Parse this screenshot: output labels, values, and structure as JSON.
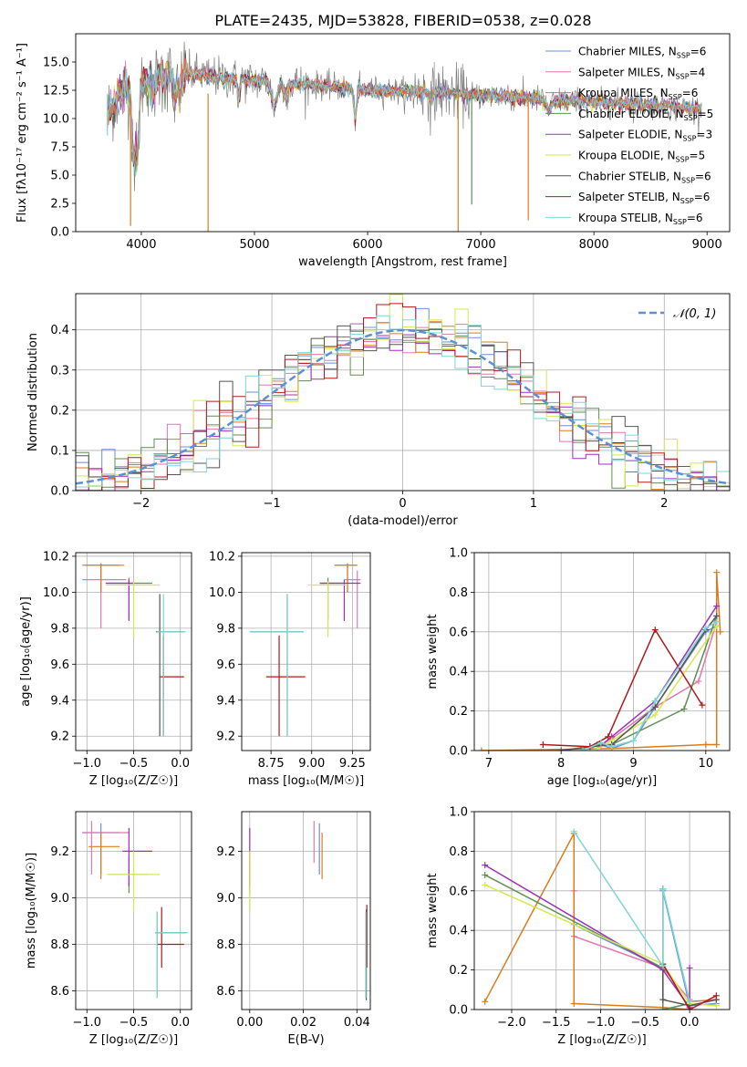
{
  "figure": {
    "title": "PLATE=2435, MJD=53828, FIBERID=0538, z=0.028"
  },
  "legend_models": [
    {
      "label": "Chabrier MILES, N_SSP=6",
      "base": "Chabrier MILES, N",
      "sub": "SSP",
      "tail": "=6",
      "color": "#6a8fd9"
    },
    {
      "label": "Salpeter MILES, N_SSP=4",
      "base": "Salpeter MILES, N",
      "sub": "SSP",
      "tail": "=4",
      "color": "#e377b0"
    },
    {
      "label": "Kroupa MILES, N_SSP=6",
      "base": "Kroupa MILES, N",
      "sub": "SSP",
      "tail": "=6",
      "color": "#d87d1f"
    },
    {
      "label": "Chabrier ELODIE, N_SSP=5",
      "base": "Chabrier ELODIE, N",
      "sub": "SSP",
      "tail": "=5",
      "color": "#5e8f53"
    },
    {
      "label": "Salpeter ELODIE, N_SSP=3",
      "base": "Salpeter ELODIE, N",
      "sub": "SSP",
      "tail": "=3",
      "color": "#9b30b8"
    },
    {
      "label": "Kroupa ELODIE, N_SSP=5",
      "base": "Kroupa ELODIE, N",
      "sub": "SSP",
      "tail": "=5",
      "color": "#d4e84e"
    },
    {
      "label": "Chabrier STELIB, N_SSP=6",
      "base": "Chabrier STELIB, N",
      "sub": "SSP",
      "tail": "=6",
      "color": "#555555"
    },
    {
      "label": "Salpeter STELIB, N_SSP=6",
      "base": "Salpeter STELIB, N",
      "sub": "SSP",
      "tail": "=6",
      "color": "#b2181b"
    },
    {
      "label": "Kroupa STELIB, N_SSP=6",
      "base": "Kroupa STELIB, N",
      "sub": "SSP",
      "tail": "=6",
      "color": "#7fd6d6"
    }
  ],
  "chart_data": [
    {
      "id": "spectrum",
      "type": "line",
      "title": "PLATE=2435, MJD=53828, FIBERID=0538, z=0.028",
      "xlabel": "wavelength [Angstrom, rest frame]",
      "ylabel": "Flux [fλ10⁻¹⁷ erg cm⁻² s⁻¹ A⁻¹]",
      "xlim": [
        3420,
        9200
      ],
      "ylim": [
        0,
        17.5
      ],
      "xticks": [
        4000,
        5000,
        6000,
        7000,
        8000,
        9000
      ],
      "yticks": [
        0.0,
        2.5,
        5.0,
        7.5,
        10.0,
        12.5,
        15.0
      ],
      "grid": false,
      "legend": "top-right",
      "data_color": "#808080",
      "continuum": {
        "x": [
          3700,
          3800,
          3900,
          4000,
          4100,
          4200,
          4300,
          4500,
          4700,
          4900,
          5100,
          5300,
          5500,
          5700,
          5900,
          6100,
          6300,
          6500,
          6700,
          6900,
          7100,
          7300,
          7500,
          7700,
          7900,
          8100,
          8300,
          8500,
          8700,
          8900
        ],
        "y": [
          10.5,
          12.0,
          12.5,
          13.2,
          13.5,
          13.8,
          14.0,
          13.9,
          13.6,
          13.4,
          13.3,
          13.1,
          13.0,
          12.8,
          12.6,
          12.5,
          12.4,
          12.4,
          12.3,
          12.1,
          12.0,
          11.9,
          11.7,
          11.6,
          11.5,
          11.4,
          11.3,
          11.2,
          11.0,
          10.9
        ]
      }
    },
    {
      "id": "residuals",
      "type": "step",
      "xlabel": "(data-model)/error",
      "ylabel": "Normed distribution",
      "xlim": [
        -2.5,
        2.5
      ],
      "ylim": [
        0,
        0.49
      ],
      "xticks": [
        -2,
        -1,
        0,
        1,
        2
      ],
      "yticks": [
        0.0,
        0.1,
        0.2,
        0.3,
        0.4
      ],
      "grid": true,
      "legend": "top-right",
      "reference": {
        "label": "𝒩(0, 1)",
        "color": "#5b8fd6",
        "style": "dashed"
      }
    },
    {
      "id": "age_vs_Z",
      "type": "errorbar",
      "xlabel": "Z [log₁₀(Z/Z☉)]",
      "ylabel": "age  [log₁₀(age/yr)]",
      "xlim": [
        -1.12,
        0.12
      ],
      "ylim": [
        9.12,
        10.22
      ],
      "xticks": [
        -1.0,
        -0.5,
        0.0
      ],
      "yticks": [
        9.2,
        9.4,
        9.6,
        9.8,
        10.0,
        10.2
      ],
      "grid": true,
      "points": [
        {
          "model": 0,
          "x": -0.85,
          "xlo": -1.05,
          "xhi": -0.65,
          "y": 10.15,
          "ylo": 10.0,
          "yhi": 10.16
        },
        {
          "model": 1,
          "x": -0.85,
          "xlo": -1.05,
          "xhi": -0.58,
          "y": 10.07,
          "ylo": 9.8,
          "yhi": 10.12
        },
        {
          "model": 2,
          "x": -0.85,
          "xlo": -1.02,
          "xhi": -0.6,
          "y": 10.15,
          "ylo": 10.0,
          "yhi": 10.16
        },
        {
          "model": 3,
          "x": -0.55,
          "xlo": -0.78,
          "xhi": -0.3,
          "y": 10.05,
          "ylo": 9.85,
          "yhi": 10.08
        },
        {
          "model": 4,
          "x": -0.55,
          "xlo": -0.8,
          "xhi": -0.5,
          "y": 10.05,
          "ylo": 9.84,
          "yhi": 10.07
        },
        {
          "model": 5,
          "x": -0.5,
          "xlo": -0.8,
          "xhi": -0.22,
          "y": 10.04,
          "ylo": 9.75,
          "yhi": 10.06
        },
        {
          "model": 6,
          "x": -0.22,
          "xlo": -0.26,
          "xhi": 0.04,
          "y": 9.78,
          "ylo": 9.2,
          "yhi": 9.99
        },
        {
          "model": 7,
          "x": -0.18,
          "xlo": -0.22,
          "xhi": 0.04,
          "y": 9.53,
          "ylo": 9.2,
          "yhi": 9.76
        },
        {
          "model": 8,
          "x": -0.18,
          "xlo": -0.25,
          "xhi": 0.06,
          "y": 9.78,
          "ylo": 9.2,
          "yhi": 9.99
        }
      ]
    },
    {
      "id": "age_vs_mass",
      "type": "errorbar",
      "xlabel": "mass [log₁₀(M/M☉)]",
      "ylabel": "",
      "xlim": [
        8.57,
        9.36
      ],
      "ylim": [
        9.12,
        10.22
      ],
      "xticks": [
        8.75,
        9.0,
        9.25
      ],
      "yticks": [
        9.2,
        9.4,
        9.6,
        9.8,
        10.0,
        10.2
      ],
      "grid": true,
      "points": [
        {
          "model": 0,
          "x": 9.22,
          "xlo": 9.14,
          "xhi": 9.28,
          "y": 10.15,
          "ylo": 10.0,
          "yhi": 10.16
        },
        {
          "model": 1,
          "x": 9.28,
          "xlo": 9.2,
          "xhi": 9.3,
          "y": 10.07,
          "ylo": 9.8,
          "yhi": 10.12
        },
        {
          "model": 2,
          "x": 9.22,
          "xlo": 9.14,
          "xhi": 9.28,
          "y": 10.15,
          "ylo": 10.0,
          "yhi": 10.16
        },
        {
          "model": 3,
          "x": 9.1,
          "xlo": 9.05,
          "xhi": 9.2,
          "y": 10.05,
          "ylo": 9.85,
          "yhi": 10.08
        },
        {
          "model": 4,
          "x": 9.2,
          "xlo": 9.05,
          "xhi": 9.3,
          "y": 10.05,
          "ylo": 9.84,
          "yhi": 10.07
        },
        {
          "model": 5,
          "x": 9.1,
          "xlo": 8.98,
          "xhi": 9.22,
          "y": 10.04,
          "ylo": 9.75,
          "yhi": 10.06
        },
        {
          "model": 6,
          "x": 8.85,
          "xlo": 8.62,
          "xhi": 8.95,
          "y": 9.78,
          "ylo": 9.2,
          "yhi": 9.99
        },
        {
          "model": 7,
          "x": 8.8,
          "xlo": 8.72,
          "xhi": 8.96,
          "y": 9.53,
          "ylo": 9.2,
          "yhi": 9.76
        },
        {
          "model": 8,
          "x": 8.85,
          "xlo": 8.62,
          "xhi": 8.95,
          "y": 9.78,
          "ylo": 9.2,
          "yhi": 9.99
        }
      ]
    },
    {
      "id": "weight_vs_age",
      "type": "line",
      "xlabel": "age  [log₁₀(age/yr)]",
      "ylabel": "mass weight",
      "xlim": [
        6.8,
        10.33
      ],
      "ylim": [
        0,
        1.0
      ],
      "xticks": [
        7,
        8,
        9,
        10
      ],
      "yticks": [
        0.0,
        0.2,
        0.4,
        0.6,
        0.8,
        1.0
      ],
      "grid": true,
      "series": [
        {
          "model": 0,
          "x": [
            8.3,
            8.55,
            8.7,
            9.0,
            9.3,
            10.0,
            10.15
          ],
          "y": [
            0.0,
            0.03,
            0.01,
            0.05,
            0.22,
            0.6,
            0.63
          ]
        },
        {
          "model": 1,
          "x": [
            8.5,
            8.7,
            9.3,
            9.9,
            10.15
          ],
          "y": [
            0.02,
            0.06,
            0.22,
            0.35,
            0.65
          ]
        },
        {
          "model": 2,
          "x": [
            6.9,
            8.7,
            10.0,
            10.15,
            10.15,
            10.2
          ],
          "y": [
            0.0,
            0.01,
            0.03,
            0.03,
            0.9,
            0.6
          ]
        },
        {
          "model": 3,
          "x": [
            8.5,
            8.7,
            9.7,
            10.15
          ],
          "y": [
            0.03,
            0.03,
            0.21,
            0.68
          ]
        },
        {
          "model": 4,
          "x": [
            8.5,
            8.7,
            9.3,
            10.15
          ],
          "y": [
            0.01,
            0.07,
            0.25,
            0.73
          ]
        },
        {
          "model": 5,
          "x": [
            8.5,
            8.7,
            9.3,
            10.15
          ],
          "y": [
            0.01,
            0.05,
            0.18,
            0.63
          ]
        },
        {
          "model": 6,
          "x": [
            8.0,
            8.4,
            8.7,
            9.3,
            10.0,
            10.15
          ],
          "y": [
            0.0,
            0.02,
            0.03,
            0.22,
            0.61,
            0.68
          ]
        },
        {
          "model": 7,
          "x": [
            7.75,
            8.4,
            8.65,
            9.3,
            9.95
          ],
          "y": [
            0.03,
            0.02,
            0.07,
            0.61,
            0.23
          ]
        },
        {
          "model": 8,
          "x": [
            8.3,
            8.55,
            8.7,
            9.0,
            9.3,
            10.0,
            10.15
          ],
          "y": [
            0.0,
            0.04,
            0.02,
            0.05,
            0.25,
            0.62,
            0.65
          ]
        }
      ]
    },
    {
      "id": "mass_vs_Z",
      "type": "errorbar",
      "xlabel": "Z [log₁₀(Z/Z☉)]",
      "ylabel": "mass [log₁₀(M/M☉)]",
      "xlim": [
        -1.12,
        0.12
      ],
      "ylim": [
        8.52,
        9.37
      ],
      "xticks": [
        -1.0,
        -0.5,
        0.0
      ],
      "yticks": [
        8.6,
        8.8,
        9.0,
        9.2
      ],
      "grid": true,
      "points": [
        {
          "model": 0,
          "x": -0.85,
          "xlo": -1.05,
          "xhi": -0.65,
          "y": 9.28,
          "ylo": 9.1,
          "yhi": 9.32
        },
        {
          "model": 1,
          "x": -0.95,
          "xlo": -1.05,
          "xhi": -0.55,
          "y": 9.28,
          "ylo": 9.1,
          "yhi": 9.33
        },
        {
          "model": 2,
          "x": -0.85,
          "xlo": -0.98,
          "xhi": -0.65,
          "y": 9.22,
          "ylo": 9.08,
          "yhi": 9.28
        },
        {
          "model": 3,
          "x": -0.55,
          "xlo": -0.78,
          "xhi": -0.35,
          "y": 9.1,
          "ylo": 9.02,
          "yhi": 9.18
        },
        {
          "model": 4,
          "x": -0.55,
          "xlo": -0.62,
          "xhi": -0.3,
          "y": 9.2,
          "ylo": 9.05,
          "yhi": 9.3
        },
        {
          "model": 5,
          "x": -0.5,
          "xlo": -0.78,
          "xhi": -0.22,
          "y": 9.1,
          "ylo": 8.94,
          "yhi": 9.2
        },
        {
          "model": 6,
          "x": -0.25,
          "xlo": -0.27,
          "xhi": 0.06,
          "y": 8.85,
          "ylo": 8.57,
          "yhi": 8.94
        },
        {
          "model": 7,
          "x": -0.2,
          "xlo": -0.25,
          "xhi": 0.04,
          "y": 8.8,
          "ylo": 8.7,
          "yhi": 8.96
        },
        {
          "model": 8,
          "x": -0.25,
          "xlo": -0.27,
          "xhi": 0.08,
          "y": 8.85,
          "ylo": 8.57,
          "yhi": 8.94
        }
      ]
    },
    {
      "id": "mass_vs_ebv",
      "type": "errorbar",
      "xlabel": "E(B-V)",
      "ylabel": "",
      "xlim": [
        -0.003,
        0.045
      ],
      "ylim": [
        8.52,
        9.37
      ],
      "xticks": [
        0.0,
        0.02,
        0.04
      ],
      "yticks": [
        8.6,
        8.8,
        9.0,
        9.2
      ],
      "grid": true,
      "points": [
        {
          "model": 0,
          "x": 0.026,
          "y": 9.28,
          "ylo": 9.1,
          "yhi": 9.32
        },
        {
          "model": 1,
          "x": 0.024,
          "y": 9.28,
          "ylo": 9.15,
          "yhi": 9.33
        },
        {
          "model": 2,
          "x": 0.027,
          "y": 9.22,
          "ylo": 9.08,
          "yhi": 9.28
        },
        {
          "model": 3,
          "x": 0.0,
          "y": 9.1,
          "ylo": 9.02,
          "yhi": 9.18
        },
        {
          "model": 4,
          "x": 0.0,
          "y": 9.2,
          "ylo": 9.05,
          "yhi": 9.3
        },
        {
          "model": 5,
          "x": 0.0,
          "y": 9.1,
          "ylo": 8.94,
          "yhi": 9.2
        },
        {
          "model": 6,
          "x": 0.0435,
          "y": 8.85,
          "ylo": 8.56,
          "yhi": 8.95
        },
        {
          "model": 7,
          "x": 0.0437,
          "y": 8.8,
          "ylo": 8.7,
          "yhi": 8.97
        },
        {
          "model": 8,
          "x": 0.0433,
          "y": 8.85,
          "ylo": 8.57,
          "yhi": 8.94
        }
      ]
    },
    {
      "id": "weight_vs_Z",
      "type": "line",
      "xlabel": "Z [log₁₀(Z/Z☉)]",
      "ylabel": "mass weight",
      "xlim": [
        -2.42,
        0.45
      ],
      "ylim": [
        0,
        1.0
      ],
      "xticks": [
        -2.0,
        -1.5,
        -1.0,
        -0.5,
        0.0
      ],
      "yticks": [
        0.0,
        0.2,
        0.4,
        0.6,
        0.8,
        1.0
      ],
      "grid": true,
      "series": [
        {
          "model": 0,
          "x": [
            -1.3,
            -0.3,
            -0.3,
            0.0,
            0.3
          ],
          "y": [
            0.43,
            0.21,
            0.6,
            0.02,
            0.03
          ]
        },
        {
          "model": 1,
          "x": [
            -1.3,
            -1.3,
            -0.3,
            0.0
          ],
          "y": [
            0.6,
            0.37,
            0.21,
            0.05
          ]
        },
        {
          "model": 2,
          "x": [
            -2.3,
            -1.3,
            -1.3,
            -0.3,
            0.0,
            0.0,
            0.3
          ],
          "y": [
            0.04,
            0.89,
            0.03,
            0.01,
            0.0,
            0.04,
            0.05
          ]
        },
        {
          "model": 3,
          "x": [
            -2.3,
            -0.3,
            -0.3,
            0.0
          ],
          "y": [
            0.68,
            0.21,
            0.0,
            0.03
          ]
        },
        {
          "model": 4,
          "x": [
            -2.3,
            -0.3,
            0.0,
            0.0
          ],
          "y": [
            0.73,
            0.2,
            0.01,
            0.21
          ]
        },
        {
          "model": 5,
          "x": [
            -2.3,
            -0.3,
            0.0,
            0.3
          ],
          "y": [
            0.63,
            0.23,
            0.03,
            0.02
          ]
        },
        {
          "model": 6,
          "x": [
            -0.3,
            -0.3,
            0.0,
            0.3
          ],
          "y": [
            0.61,
            0.05,
            0.02,
            0.05
          ]
        },
        {
          "model": 7,
          "x": [
            -0.3,
            -0.3,
            0.0,
            0.3
          ],
          "y": [
            0.61,
            0.23,
            0.0,
            0.07
          ]
        },
        {
          "model": 8,
          "x": [
            -1.3,
            -0.3,
            -0.3,
            0.0
          ],
          "y": [
            0.9,
            0.22,
            0.61,
            0.04
          ]
        }
      ]
    }
  ]
}
